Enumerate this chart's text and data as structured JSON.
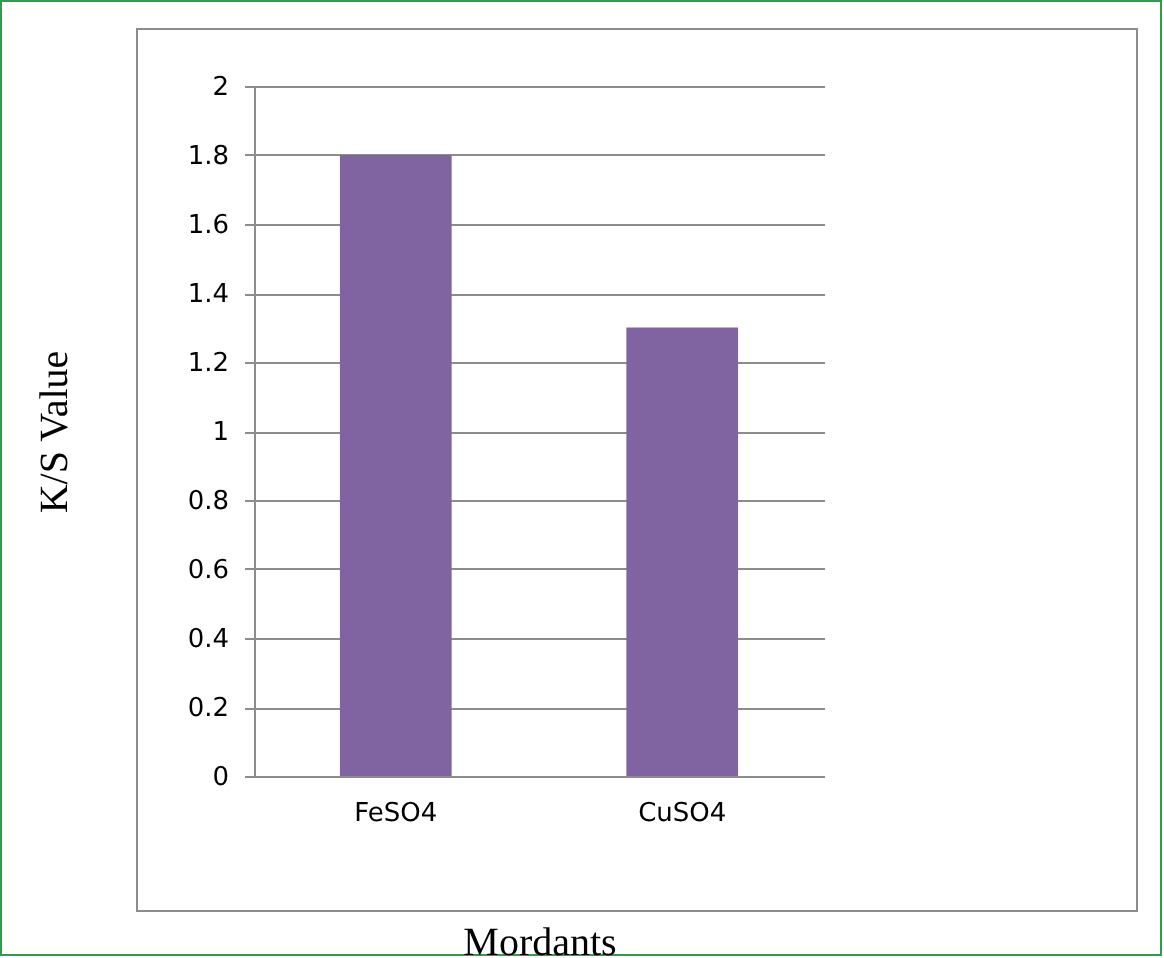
{
  "chart_data": {
    "type": "bar",
    "xlabel": "Mordants",
    "ylabel": "K/S Value",
    "categories": [
      "FeSO4",
      "CuSO4"
    ],
    "values": [
      1.8,
      1.3
    ],
    "color": "#8064a2",
    "ylim": [
      0,
      2
    ],
    "yticks": [
      0,
      0.2,
      0.4,
      0.6,
      0.8,
      1,
      1.2,
      1.4,
      1.6,
      1.8,
      2
    ],
    "grid": "y"
  }
}
